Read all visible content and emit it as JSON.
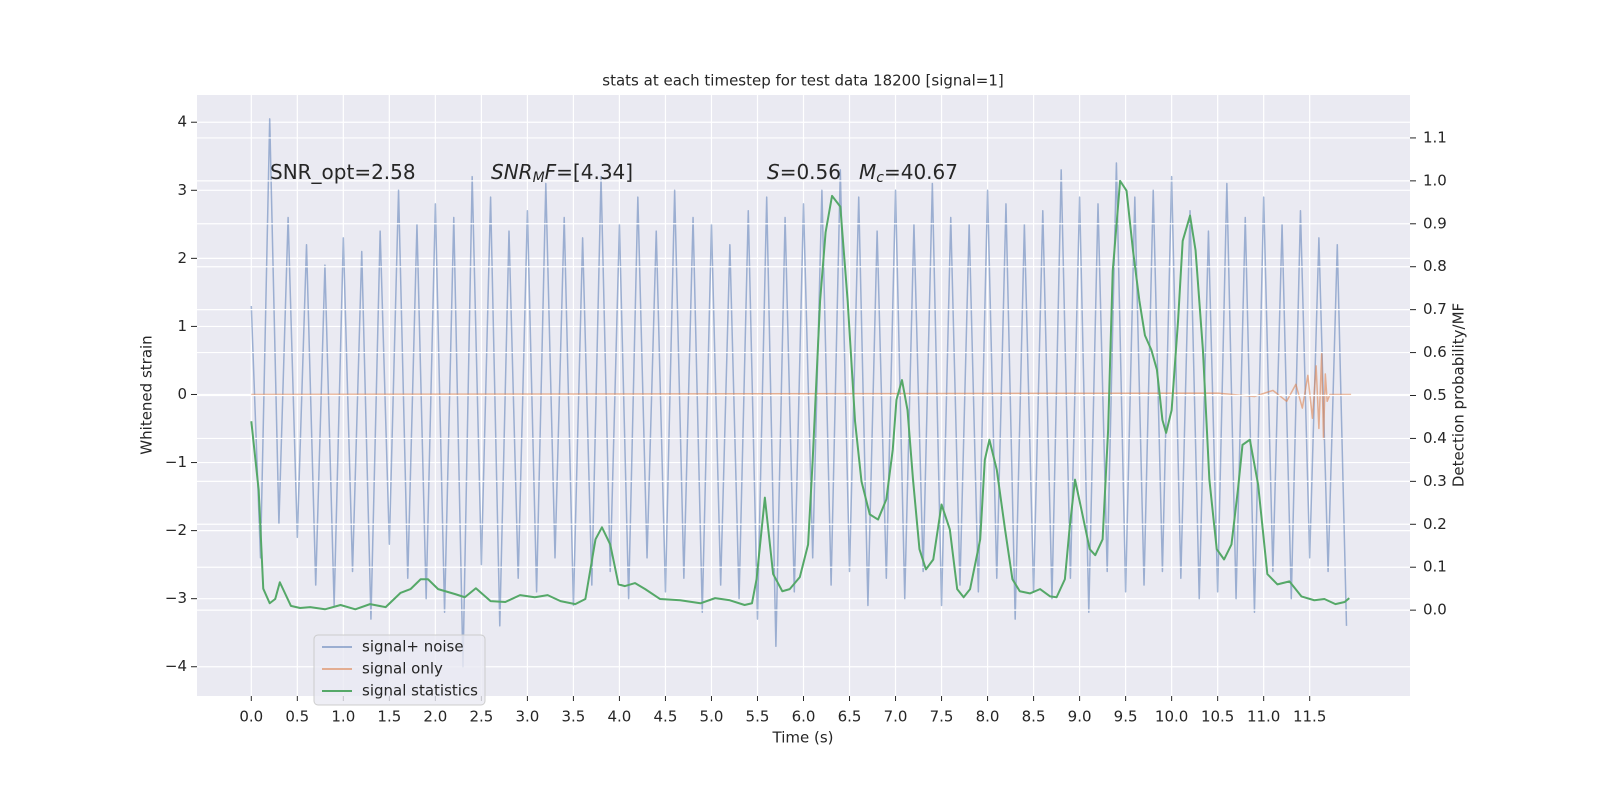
{
  "chart_data": {
    "type": "line",
    "title": "stats at each timestep for test data 18200 [signal=1]",
    "xlabel": "Time (s)",
    "ylabel": "Whitened strain",
    "y2label": "Detection probability/MF",
    "xlim": [
      -0.59,
      12.59
    ],
    "ylim": [
      -4.43,
      4.4
    ],
    "y2lim": [
      -0.2,
      1.2
    ],
    "xticks": [
      {
        "value": 0,
        "label": "0.0"
      },
      0.5,
      {
        "value": 1,
        "label": "1.0"
      },
      1.5,
      {
        "value": 2,
        "label": "2.0"
      },
      2.5,
      {
        "value": 3,
        "label": "3.0"
      },
      3.5,
      {
        "value": 4,
        "label": "4.0"
      },
      4.5,
      {
        "value": 5,
        "label": "5.0"
      },
      5.5,
      {
        "value": 6,
        "label": "6.0"
      },
      6.5,
      {
        "value": 7,
        "label": "7.0"
      },
      7.5,
      {
        "value": 8,
        "label": "8.0"
      },
      8.5,
      {
        "value": 9,
        "label": "9.0"
      },
      9.5,
      {
        "value": 10,
        "label": "10.0"
      },
      10.5,
      {
        "value": 11,
        "label": "11.0"
      },
      11.5
    ],
    "yticks": [
      {
        "value": -4,
        "label": "−4"
      },
      {
        "value": -3,
        "label": "−3"
      },
      {
        "value": -2,
        "label": "−2"
      },
      {
        "value": -1,
        "label": "−1"
      },
      0,
      1,
      2,
      3,
      4
    ],
    "y2ticks": [
      {
        "value": 0,
        "label": "0.0"
      },
      0.1,
      0.2,
      0.3,
      0.4,
      0.5,
      0.6,
      0.7,
      0.8,
      0.9,
      {
        "value": 1,
        "label": "1.0"
      },
      1.1
    ],
    "grid": true,
    "legend": "lower left",
    "series": [
      {
        "name": "signal+ noise",
        "color": "#4c72b0",
        "alpha": 0.5,
        "x": [
          0,
          0.1,
          0.2,
          0.3,
          0.4,
          0.5,
          0.6,
          0.7,
          0.8,
          0.9,
          1,
          1.1,
          1.2,
          1.3,
          1.4,
          1.5,
          1.6,
          1.7,
          1.8,
          1.9,
          2,
          2.1,
          2.2,
          2.3,
          2.4,
          2.5,
          2.6,
          2.7,
          2.8,
          2.9,
          3,
          3.1,
          3.2,
          3.3,
          3.4,
          3.5,
          3.6,
          3.7,
          3.8,
          3.9,
          4,
          4.1,
          4.2,
          4.3,
          4.4,
          4.5,
          4.6,
          4.7,
          4.8,
          4.9,
          5,
          5.1,
          5.2,
          5.3,
          5.4,
          5.5,
          5.6,
          5.7,
          5.8,
          5.9,
          6,
          6.1,
          6.2,
          6.3,
          6.4,
          6.5,
          6.6,
          6.7,
          6.8,
          6.9,
          7,
          7.1,
          7.2,
          7.3,
          7.4,
          7.5,
          7.6,
          7.7,
          7.8,
          7.9,
          8,
          8.1,
          8.2,
          8.3,
          8.4,
          8.5,
          8.6,
          8.7,
          8.8,
          8.9,
          9,
          9.1,
          9.2,
          9.3,
          9.4,
          9.5,
          9.6,
          9.7,
          9.8,
          9.9,
          10,
          10.1,
          10.2,
          10.3,
          10.4,
          10.5,
          10.6,
          10.7,
          10.8,
          10.9,
          11,
          11.1,
          11.2,
          11.3,
          11.4,
          11.5,
          11.6,
          11.7,
          11.8,
          11.9
        ],
        "values": [
          1.3,
          -2.4,
          4.05,
          -1.9,
          2.6,
          -2.1,
          2.2,
          -2.8,
          1.9,
          -3.1,
          2.3,
          -2.6,
          2.1,
          -3.3,
          2.4,
          -2.2,
          3.0,
          -2.7,
          2.5,
          -3.0,
          2.8,
          -3.2,
          2.6,
          -4.0,
          3.2,
          -2.5,
          2.9,
          -3.4,
          2.4,
          -2.7,
          2.7,
          -2.9,
          3.1,
          -2.4,
          2.6,
          -3.1,
          2.3,
          -2.8,
          3.2,
          -2.6,
          2.5,
          -3.0,
          2.9,
          -2.4,
          2.4,
          -2.9,
          3.0,
          -2.7,
          2.6,
          -3.2,
          2.5,
          -2.8,
          2.2,
          -3.0,
          2.7,
          -3.3,
          2.9,
          -3.7,
          2.6,
          -2.9,
          2.8,
          -2.4,
          3.0,
          -2.8,
          3.3,
          -2.6,
          2.9,
          -3.1,
          2.4,
          -2.7,
          3.0,
          -3.0,
          2.5,
          -2.6,
          3.1,
          -3.1,
          2.6,
          -2.8,
          2.5,
          -2.9,
          3.0,
          -2.7,
          2.8,
          -3.3,
          2.5,
          -2.9,
          2.7,
          -3.0,
          3.3,
          -2.7,
          2.9,
          -3.2,
          2.8,
          -2.6,
          3.4,
          -2.9,
          2.9,
          -2.8,
          3.0,
          -2.6,
          3.2,
          -2.7,
          2.7,
          -3.0,
          2.4,
          -2.9,
          3.1,
          -3.0,
          2.6,
          -3.2,
          2.9,
          -2.6,
          2.5,
          -3.0,
          2.7,
          -2.4,
          2.3,
          -2.6,
          2.2,
          -3.4
        ]
      },
      {
        "name": "signal only",
        "color": "#dd8452",
        "alpha": 0.6,
        "x": [
          0,
          10.5,
          10.9,
          11.1,
          11.25,
          11.35,
          11.42,
          11.48,
          11.53,
          11.57,
          11.6,
          11.63,
          11.65,
          11.67,
          11.69,
          11.72,
          11.95
        ],
        "values": [
          0,
          0.02,
          -0.03,
          0.06,
          -0.1,
          0.15,
          -0.2,
          0.28,
          -0.35,
          0.42,
          -0.5,
          0.6,
          -0.65,
          0.3,
          -0.1,
          0,
          0
        ]
      },
      {
        "name": "signal statistics",
        "color": "#55a868",
        "alpha": 1,
        "axis": "y2",
        "x": [
          0,
          0.08,
          0.13,
          0.2,
          0.26,
          0.31,
          0.43,
          0.53,
          0.64,
          0.8,
          0.97,
          1.13,
          1.29,
          1.46,
          1.62,
          1.73,
          1.84,
          1.92,
          2.03,
          2.22,
          2.32,
          2.44,
          2.6,
          2.76,
          2.92,
          3.08,
          3.22,
          3.36,
          3.52,
          3.63,
          3.74,
          3.81,
          3.9,
          3.99,
          4.06,
          4.17,
          4.28,
          4.44,
          4.66,
          4.88,
          5.04,
          5.2,
          5.36,
          5.44,
          5.49,
          5.58,
          5.67,
          5.77,
          5.85,
          5.96,
          6.05,
          6.1,
          6.18,
          6.24,
          6.31,
          6.4,
          6.48,
          6.56,
          6.63,
          6.72,
          6.81,
          6.9,
          6.97,
          7.01,
          7.07,
          7.13,
          7.19,
          7.26,
          7.33,
          7.41,
          7.5,
          7.59,
          7.67,
          7.74,
          7.81,
          7.92,
          7.97,
          8.02,
          8.1,
          8.19,
          8.27,
          8.35,
          8.46,
          8.57,
          8.68,
          8.75,
          8.84,
          8.89,
          8.95,
          9.02,
          9.11,
          9.17,
          9.25,
          9.31,
          9.36,
          9.44,
          9.51,
          9.58,
          9.65,
          9.71,
          9.78,
          9.84,
          9.9,
          9.94,
          10.0,
          10.07,
          10.12,
          10.2,
          10.26,
          10.34,
          10.41,
          10.49,
          10.57,
          10.65,
          10.72,
          10.77,
          10.85,
          10.94,
          11.04,
          11.15,
          11.28,
          11.41,
          11.55,
          11.66,
          11.78,
          11.88,
          11.93
        ],
        "values": [
          0.44,
          0.28,
          0.05,
          0.016,
          0.026,
          0.065,
          0.01,
          0.005,
          0.007,
          0.002,
          0.012,
          0.002,
          0.014,
          0.007,
          0.04,
          0.049,
          0.072,
          0.072,
          0.049,
          0.037,
          0.03,
          0.051,
          0.021,
          0.019,
          0.035,
          0.03,
          0.035,
          0.021,
          0.014,
          0.026,
          0.165,
          0.193,
          0.153,
          0.06,
          0.056,
          0.063,
          0.049,
          0.026,
          0.023,
          0.016,
          0.028,
          0.023,
          0.012,
          0.016,
          0.072,
          0.262,
          0.084,
          0.044,
          0.049,
          0.077,
          0.153,
          0.35,
          0.72,
          0.88,
          0.965,
          0.94,
          0.72,
          0.44,
          0.3,
          0.223,
          0.211,
          0.258,
          0.374,
          0.49,
          0.536,
          0.466,
          0.304,
          0.142,
          0.095,
          0.118,
          0.246,
          0.188,
          0.049,
          0.03,
          0.049,
          0.165,
          0.35,
          0.397,
          0.327,
          0.188,
          0.072,
          0.044,
          0.039,
          0.049,
          0.032,
          0.03,
          0.072,
          0.188,
          0.304,
          0.234,
          0.142,
          0.128,
          0.165,
          0.42,
          0.79,
          1.0,
          0.977,
          0.838,
          0.72,
          0.64,
          0.606,
          0.56,
          0.443,
          0.413,
          0.466,
          0.675,
          0.86,
          0.919,
          0.838,
          0.606,
          0.304,
          0.142,
          0.118,
          0.153,
          0.28,
          0.385,
          0.397,
          0.292,
          0.084,
          0.06,
          0.067,
          0.032,
          0.023,
          0.026,
          0.014,
          0.019,
          0.028
        ]
      }
    ],
    "annotations": [
      {
        "parts": [
          {
            "text": "SNR_opt=2.58",
            "style": "normal"
          }
        ]
      },
      {
        "parts": [
          {
            "text": "SNR",
            "style": "italic"
          },
          {
            "text": "M",
            "style": "sub"
          },
          {
            "text": "F",
            "style": "italic"
          },
          {
            "text": "=[4.34]",
            "style": "normal"
          }
        ]
      },
      {
        "parts": [
          {
            "text": "S",
            "style": "italic"
          },
          {
            "text": "=0.56",
            "style": "normal"
          }
        ]
      },
      {
        "parts": [
          {
            "text": "M",
            "style": "italic"
          },
          {
            "text": "c",
            "style": "sub"
          },
          {
            "text": "=40.67",
            "style": "normal"
          }
        ]
      }
    ]
  }
}
